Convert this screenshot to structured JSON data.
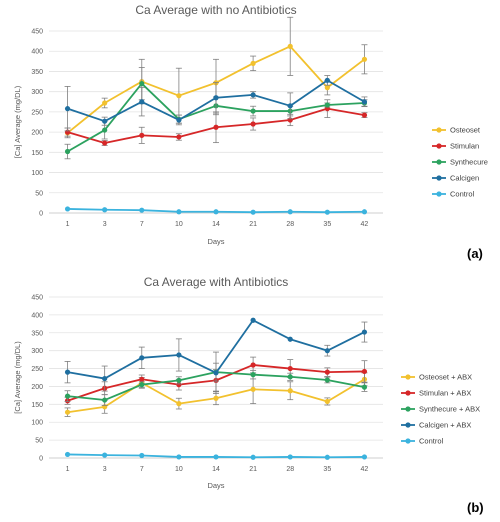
{
  "figure_labels": [
    "(a)",
    "(b)"
  ],
  "chart_data": [
    {
      "type": "line",
      "title": "Ca Average with no Antibiotics",
      "xlabel": "Days",
      "ylabel": "[Ca] Average (mg/DL)",
      "categories": [
        "1",
        "3",
        "7",
        "10",
        "14",
        "21",
        "28",
        "35",
        "42"
      ],
      "ylim": [
        0,
        450
      ],
      "yticks": [
        0,
        50,
        100,
        150,
        200,
        250,
        300,
        350,
        400,
        450
      ],
      "grid": "horizontal",
      "legend_position": "right",
      "error_bars": true,
      "series": [
        {
          "name": "Osteoset",
          "color": "#F2C12E",
          "values": [
            198,
            272,
            325,
            290,
            322,
            370,
            412,
            310,
            380
          ],
          "errors": [
            12,
            12,
            55,
            68,
            58,
            18,
            72,
            18,
            36
          ]
        },
        {
          "name": "Stimulan",
          "color": "#D62728",
          "values": [
            200,
            173,
            192,
            188,
            212,
            220,
            230,
            258,
            242
          ],
          "errors": [
            10,
            6,
            20,
            8,
            38,
            15,
            14,
            22,
            6
          ]
        },
        {
          "name": "Synthecure",
          "color": "#2CA25F",
          "values": [
            152,
            205,
            320,
            232,
            265,
            252,
            252,
            267,
            272
          ],
          "errors": [
            18,
            22,
            40,
            10,
            22,
            12,
            12,
            5,
            8
          ]
        },
        {
          "name": "Calcigen",
          "color": "#1F6FA0",
          "values": [
            258,
            227,
            275,
            230,
            285,
            292,
            265,
            328,
            275
          ],
          "errors": [
            55,
            10,
            35,
            12,
            38,
            8,
            32,
            12,
            12
          ]
        },
        {
          "name": "Control",
          "color": "#3BB3DE",
          "values": [
            10,
            8,
            7,
            3,
            3,
            2,
            3,
            2,
            3
          ],
          "errors": [
            0,
            0,
            0,
            0,
            0,
            0,
            0,
            0,
            0
          ]
        }
      ]
    },
    {
      "type": "line",
      "title": "Ca Average with Antibiotics",
      "xlabel": "Days",
      "ylabel": "[Ca] Average (mg/DL)",
      "categories": [
        "1",
        "3",
        "7",
        "10",
        "14",
        "21",
        "28",
        "35",
        "42"
      ],
      "ylim": [
        0,
        450
      ],
      "yticks": [
        0,
        50,
        100,
        150,
        200,
        250,
        300,
        350,
        400,
        450
      ],
      "grid": "horizontal",
      "legend_position": "right",
      "error_bars": true,
      "series": [
        {
          "name": "Osteoset + ABX",
          "color": "#F2C12E",
          "values": [
            128,
            143,
            210,
            152,
            167,
            192,
            188,
            158,
            220
          ],
          "errors": [
            12,
            18,
            15,
            15,
            18,
            40,
            25,
            10,
            18
          ]
        },
        {
          "name": "Stimulan + ABX",
          "color": "#D62728",
          "values": [
            160,
            195,
            220,
            205,
            217,
            260,
            250,
            240,
            242
          ],
          "errors": [
            10,
            18,
            12,
            15,
            30,
            22,
            25,
            12,
            30
          ]
        },
        {
          "name": "Synthecure + ABX",
          "color": "#2CA25F",
          "values": [
            173,
            162,
            205,
            217,
            240,
            233,
            227,
            218,
            198
          ],
          "errors": [
            15,
            15,
            8,
            10,
            25,
            12,
            10,
            8,
            12
          ]
        },
        {
          "name": "Calcigen + ABX",
          "color": "#1F6FA0",
          "values": [
            240,
            222,
            280,
            288,
            238,
            385,
            332,
            300,
            352
          ],
          "errors": [
            30,
            35,
            30,
            45,
            58,
            0,
            0,
            15,
            28
          ]
        },
        {
          "name": "Control",
          "color": "#3BB3DE",
          "values": [
            10,
            8,
            7,
            3,
            3,
            2,
            3,
            2,
            3
          ],
          "errors": [
            0,
            0,
            0,
            0,
            0,
            0,
            0,
            0,
            0
          ]
        }
      ]
    }
  ]
}
